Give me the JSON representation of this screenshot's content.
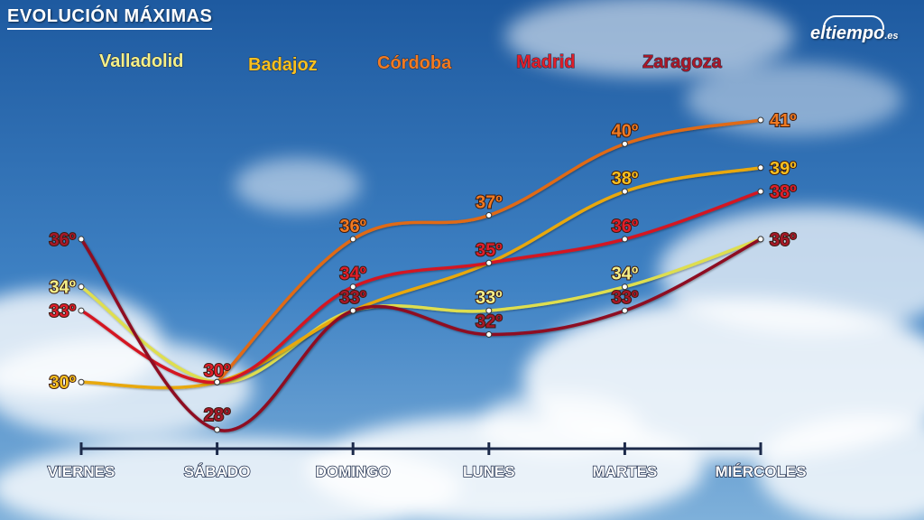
{
  "title": "EVOLUCIÓN MÁXIMAS",
  "brand": {
    "name": "eltiempo",
    "suffix": ".es"
  },
  "chart_data": {
    "type": "line",
    "title": "EVOLUCIÓN MÁXIMAS",
    "categories": [
      "VIERNES",
      "SÁBADO",
      "DOMINGO",
      "LUNES",
      "MARTES",
      "MIÉRCOLES"
    ],
    "unit": "º",
    "ylim": [
      28,
      41
    ],
    "legend_position": "top",
    "grid": false,
    "series": [
      {
        "name": "Valladolid",
        "values": [
          34,
          30,
          33,
          33,
          34,
          36
        ],
        "color": "#f4f08a",
        "stroke": "#dede50"
      },
      {
        "name": "Badajoz",
        "values": [
          30,
          30,
          33,
          35,
          38,
          39
        ],
        "color": "#f7c020",
        "stroke": "#e8a810"
      },
      {
        "name": "Córdoba",
        "values": [
          null,
          30,
          36,
          37,
          40,
          41
        ],
        "color": "#f07a22",
        "stroke": "#e06a14"
      },
      {
        "name": "Madrid",
        "values": [
          33,
          30,
          34,
          35,
          36,
          38
        ],
        "color": "#e01e2a",
        "stroke": "#d41822"
      },
      {
        "name": "Zaragoza",
        "values": [
          36,
          28,
          33,
          32,
          33,
          36
        ],
        "color": "#a81828",
        "stroke": "#8e1020"
      }
    ],
    "data_labels": [
      {
        "series": "Zaragoza",
        "category": "VIERNES",
        "text": "36º"
      },
      {
        "series": "Valladolid",
        "category": "VIERNES",
        "text": "34º"
      },
      {
        "series": "Madrid",
        "category": "VIERNES",
        "text": "33º"
      },
      {
        "series": "Badajoz",
        "category": "VIERNES",
        "text": "30º"
      },
      {
        "series": "Madrid",
        "category": "SÁBADO",
        "text": "30º"
      },
      {
        "series": "Zaragoza",
        "category": "SÁBADO",
        "text": "28º"
      },
      {
        "series": "Córdoba",
        "category": "DOMINGO",
        "text": "36º"
      },
      {
        "series": "Madrid",
        "category": "DOMINGO",
        "text": "34º"
      },
      {
        "series": "Zaragoza",
        "category": "DOMINGO",
        "text": "33º"
      },
      {
        "series": "Córdoba",
        "category": "LUNES",
        "text": "37º"
      },
      {
        "series": "Madrid",
        "category": "LUNES",
        "text": "35º"
      },
      {
        "series": "Valladolid",
        "category": "LUNES",
        "text": "33º"
      },
      {
        "series": "Zaragoza",
        "category": "LUNES",
        "text": "32º"
      },
      {
        "series": "Córdoba",
        "category": "MARTES",
        "text": "40º"
      },
      {
        "series": "Badajoz",
        "category": "MARTES",
        "text": "38º"
      },
      {
        "series": "Madrid",
        "category": "MARTES",
        "text": "36º"
      },
      {
        "series": "Valladolid",
        "category": "MARTES",
        "text": "34º"
      },
      {
        "series": "Zaragoza",
        "category": "MARTES",
        "text": "33º"
      },
      {
        "series": "Córdoba",
        "category": "MIÉRCOLES",
        "text": "41º"
      },
      {
        "series": "Badajoz",
        "category": "MIÉRCOLES",
        "text": "39º"
      },
      {
        "series": "Madrid",
        "category": "MIÉRCOLES",
        "text": "38º"
      },
      {
        "series": "Zaragoza",
        "category": "MIÉRCOLES",
        "text": "36º"
      }
    ],
    "colors": {
      "axis": "#1c2a4a",
      "tick_label": "#ffffff",
      "sky_top": "#1f5fa6",
      "sky_bottom": "#6fa6d6"
    }
  }
}
